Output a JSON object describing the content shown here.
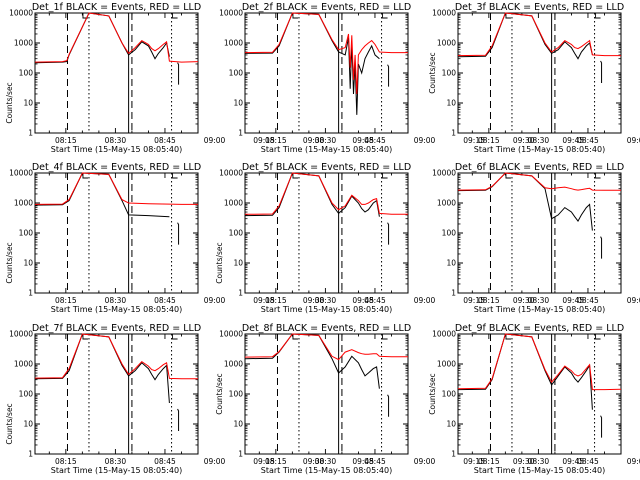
{
  "figure": {
    "time_range": [
      "08:05:40",
      "08:55:00"
    ],
    "x_tick_labels": [
      "08:15",
      "08:30",
      "08:45",
      "09:00",
      "09:15",
      "09:30",
      "09:45"
    ],
    "y_tick_labels": [
      "1",
      "10",
      "100",
      "1000",
      "10000"
    ],
    "colors": {
      "events": "#000000",
      "lld": "#ff0000"
    },
    "panels": [
      {
        "title": "Det_1f BLACK = Events, RED = LLD",
        "xlabel": "Start Time (15-May-15 08:05:40)",
        "ylabel": "Counts/sec",
        "label_row": 1
      },
      {
        "title": "Det_2f BLACK = Events, RED = LLD",
        "xlabel": "Start Time (15-May-15 08:05:40)",
        "ylabel": "",
        "label_row": 1
      },
      {
        "title": "Det_3f BLACK = Events, RED = LLD",
        "xlabel": "Start Time (15-May-15 08:05:40)",
        "ylabel": "Counts/sec",
        "label_row": 0
      },
      {
        "title": "Det_4f BLACK = Events, RED = LLD",
        "xlabel": "Start Time (15-May-15 08:05:40)",
        "ylabel": "Counts/sec",
        "label_row": 1
      },
      {
        "title": "Det_5f BLACK = Events, RED = LLD",
        "xlabel": "Start Time (15-May-15 08:05:40)",
        "ylabel": "Counts/sec",
        "label_row": 1
      },
      {
        "title": "Det_6f BLACK = Events, RED = LLD",
        "xlabel": "Start Time (15-May-15 08:05:40)",
        "ylabel": "",
        "label_row": 0
      },
      {
        "title": "Det_7f BLACK = Events, RED = LLD",
        "xlabel": "Start Time (15-May-15 08:05:40)",
        "ylabel": "Counts/sec",
        "label_row": 1
      },
      {
        "title": "Det_8f BLACK = Events, RED = LLD",
        "xlabel": "Start Time (15-May-15 08:05:40)",
        "ylabel": "Counts/sec",
        "label_row": 0
      },
      {
        "title": "Det_9f BLACK = Events, RED = LLD",
        "xlabel": "Start Time (15-May-15 08:05:40)",
        "ylabel": "Counts/sec",
        "label_row": 0
      }
    ]
  },
  "chart_data": [
    {
      "type": "line",
      "y_scale": "log",
      "ylim": [
        1,
        10000
      ],
      "vlines": {
        "dashed": [
          "08:15:30",
          "08:35:00"
        ],
        "dotted": [
          "08:22:00",
          "08:47:00"
        ],
        "solid": [
          "08:34:00"
        ]
      },
      "series": [
        {
          "name": "Events",
          "x": [
            "08:05:40",
            "08:14:00",
            "08:15:20",
            "08:16:00",
            "08:22:00",
            "08:28:00",
            "08:32:00",
            "08:34:00",
            "08:36:00",
            "08:38:00",
            "08:40:00",
            "08:41:00",
            "08:42:00",
            "08:43:00",
            "08:44:30",
            "08:45:30",
            "08:46:20"
          ],
          "y": [
            220,
            230,
            240,
            400,
            10000,
            8000,
            1000,
            400,
            600,
            1100,
            800,
            500,
            300,
            450,
            700,
            1000,
            350
          ]
        },
        {
          "name": "LLD",
          "x": [
            "08:05:40",
            "08:14:00",
            "08:15:20",
            "08:16:00",
            "08:22:00",
            "08:28:00",
            "08:32:00",
            "08:34:00",
            "08:36:00",
            "08:38:00",
            "08:40:00",
            "08:41:00",
            "08:42:00",
            "08:43:00",
            "08:44:30",
            "08:45:30",
            "08:46:20",
            "08:50:00",
            "08:55:00"
          ],
          "y": [
            230,
            240,
            260,
            420,
            10000,
            8000,
            1000,
            450,
            700,
            1200,
            900,
            650,
            550,
            650,
            900,
            1100,
            250,
            230,
            240
          ]
        }
      ]
    },
    {
      "type": "line",
      "y_scale": "log",
      "ylim": [
        1,
        10000
      ],
      "vlines": {
        "dashed": [
          "08:15:30",
          "08:35:00"
        ],
        "dotted": [
          "08:22:00",
          "08:47:00"
        ],
        "solid": [
          "08:34:00"
        ]
      },
      "series": [
        {
          "name": "Events",
          "x": [
            "08:05:40",
            "08:14:00",
            "08:16:00",
            "08:20:00",
            "08:28:00",
            "08:32:00",
            "08:34:00",
            "08:36:00",
            "08:37:00",
            "08:37:30",
            "08:38:00",
            "08:38:30",
            "08:39:00",
            "08:39:30",
            "08:40:00",
            "08:41:00",
            "08:42:00",
            "08:43:00",
            "08:44:00",
            "08:45:00",
            "08:46:20"
          ],
          "y": [
            450,
            460,
            800,
            10000,
            9000,
            1200,
            500,
            400,
            1500,
            30,
            1000,
            20,
            200,
            4,
            200,
            100,
            300,
            500,
            800,
            400,
            300
          ]
        },
        {
          "name": "LLD",
          "x": [
            "08:05:40",
            "08:14:00",
            "08:16:00",
            "08:20:00",
            "08:28:00",
            "08:32:00",
            "08:34:00",
            "08:36:00",
            "08:37:00",
            "08:37:30",
            "08:38:00",
            "08:38:30",
            "08:39:00",
            "08:39:30",
            "08:40:00",
            "08:41:00",
            "08:42:00",
            "08:43:00",
            "08:44:00",
            "08:45:00",
            "08:46:20",
            "08:50:00",
            "08:55:00"
          ],
          "y": [
            480,
            490,
            900,
            10000,
            9000,
            1300,
            600,
            700,
            2000,
            150,
            1800,
            60,
            400,
            20,
            400,
            600,
            800,
            1000,
            1200,
            900,
            500,
            480,
            480
          ]
        }
      ]
    },
    {
      "type": "line",
      "y_scale": "log",
      "ylim": [
        1,
        10000
      ],
      "vlines": {
        "dashed": [
          "08:15:30",
          "08:35:00"
        ],
        "dotted": [
          "08:22:00",
          "08:47:00"
        ],
        "solid": [
          "08:34:00"
        ]
      },
      "series": [
        {
          "name": "Events",
          "x": [
            "08:05:40",
            "08:14:00",
            "08:16:00",
            "08:20:00",
            "08:28:00",
            "08:32:00",
            "08:34:00",
            "08:36:00",
            "08:38:00",
            "08:40:00",
            "08:41:00",
            "08:42:00",
            "08:43:00",
            "08:44:30",
            "08:45:30",
            "08:46:20"
          ],
          "y": [
            350,
            360,
            700,
            10000,
            8000,
            900,
            450,
            600,
            1100,
            700,
            450,
            300,
            500,
            800,
            1000,
            400
          ]
        },
        {
          "name": "LLD",
          "x": [
            "08:05:40",
            "08:14:00",
            "08:16:00",
            "08:20:00",
            "08:28:00",
            "08:32:00",
            "08:34:00",
            "08:36:00",
            "08:38:00",
            "08:40:00",
            "08:41:00",
            "08:42:00",
            "08:43:00",
            "08:44:30",
            "08:45:30",
            "08:46:20",
            "08:50:00",
            "08:55:00"
          ],
          "y": [
            380,
            390,
            800,
            10000,
            8000,
            1000,
            500,
            700,
            1200,
            900,
            700,
            650,
            750,
            1000,
            1200,
            400,
            380,
            380
          ]
        }
      ]
    },
    {
      "type": "line",
      "y_scale": "log",
      "ylim": [
        1,
        10000
      ],
      "vlines": {
        "dashed": [
          "08:15:30",
          "08:35:00"
        ],
        "dotted": [
          "08:22:00",
          "08:47:00"
        ],
        "solid": [
          "08:34:00"
        ]
      },
      "series": [
        {
          "name": "Events",
          "x": [
            "08:05:40",
            "08:14:00",
            "08:16:00",
            "08:20:00",
            "08:28:00",
            "08:32:00",
            "08:34:00",
            "08:40:00",
            "08:46:20"
          ],
          "y": [
            850,
            870,
            1200,
            10000,
            9000,
            1200,
            400,
            380,
            350
          ]
        },
        {
          "name": "LLD",
          "x": [
            "08:05:40",
            "08:14:00",
            "08:16:00",
            "08:20:00",
            "08:28:00",
            "08:32:00",
            "08:34:00",
            "08:40:00",
            "08:46:20",
            "08:50:00",
            "08:55:00"
          ],
          "y": [
            900,
            920,
            1300,
            10000,
            9000,
            1300,
            1000,
            950,
            920,
            900,
            900
          ]
        }
      ]
    },
    {
      "type": "line",
      "y_scale": "log",
      "ylim": [
        1,
        10000
      ],
      "vlines": {
        "dashed": [
          "08:15:30",
          "08:35:00"
        ],
        "dotted": [
          "08:22:00",
          "08:47:00"
        ],
        "solid": [
          "08:34:00"
        ]
      },
      "series": [
        {
          "name": "Events",
          "x": [
            "08:05:40",
            "08:14:00",
            "08:16:00",
            "08:20:00",
            "08:28:00",
            "08:32:00",
            "08:34:00",
            "08:36:00",
            "08:38:00",
            "08:40:00",
            "08:41:00",
            "08:42:00",
            "08:43:00",
            "08:44:30",
            "08:45:30",
            "08:46:20"
          ],
          "y": [
            380,
            390,
            700,
            10000,
            8000,
            900,
            450,
            700,
            1700,
            1000,
            650,
            500,
            600,
            1000,
            1200,
            350
          ]
        },
        {
          "name": "LLD",
          "x": [
            "08:05:40",
            "08:14:00",
            "08:16:00",
            "08:20:00",
            "08:28:00",
            "08:32:00",
            "08:34:00",
            "08:36:00",
            "08:38:00",
            "08:40:00",
            "08:41:00",
            "08:42:00",
            "08:43:00",
            "08:44:30",
            "08:45:30",
            "08:46:20",
            "08:50:00",
            "08:55:00"
          ],
          "y": [
            420,
            430,
            800,
            10000,
            8000,
            1000,
            600,
            800,
            1800,
            1200,
            900,
            900,
            1000,
            1300,
            1400,
            450,
            420,
            420
          ]
        }
      ]
    },
    {
      "type": "line",
      "y_scale": "log",
      "ylim": [
        1,
        10000
      ],
      "vlines": {
        "dashed": [
          "08:15:30",
          "08:35:00"
        ],
        "dotted": [
          "08:22:00",
          "08:47:00"
        ],
        "solid": [
          "08:34:00"
        ]
      },
      "series": [
        {
          "name": "Events",
          "x": [
            "08:05:40",
            "08:14:00",
            "08:16:00",
            "08:20:00",
            "08:28:00",
            "08:32:00",
            "08:34:00",
            "08:36:00",
            "08:38:00",
            "08:40:00",
            "08:41:00",
            "08:42:00",
            "08:43:00",
            "08:44:30",
            "08:45:30",
            "08:46:20"
          ],
          "y": [
            2600,
            2650,
            3500,
            10000,
            8000,
            3000,
            300,
            400,
            700,
            500,
            350,
            250,
            400,
            700,
            900,
            120
          ]
        },
        {
          "name": "LLD",
          "x": [
            "08:05:40",
            "08:14:00",
            "08:16:00",
            "08:20:00",
            "08:28:00",
            "08:32:00",
            "08:34:00",
            "08:36:00",
            "08:38:00",
            "08:40:00",
            "08:41:00",
            "08:42:00",
            "08:43:00",
            "08:44:30",
            "08:45:30",
            "08:46:20",
            "08:50:00",
            "08:55:00"
          ],
          "y": [
            2700,
            2750,
            3600,
            10000,
            8000,
            3200,
            3000,
            3200,
            3400,
            3000,
            2800,
            2700,
            2800,
            3000,
            3100,
            2700,
            2650,
            2650
          ]
        }
      ]
    },
    {
      "type": "line",
      "y_scale": "log",
      "ylim": [
        1,
        10000
      ],
      "vlines": {
        "dashed": [
          "08:15:30",
          "08:35:00"
        ],
        "dotted": [
          "08:22:00",
          "08:47:00"
        ],
        "solid": [
          "08:34:00"
        ]
      },
      "series": [
        {
          "name": "Events",
          "x": [
            "08:05:40",
            "08:14:00",
            "08:16:00",
            "08:20:00",
            "08:28:00",
            "08:32:00",
            "08:34:00",
            "08:36:00",
            "08:38:00",
            "08:40:00",
            "08:41:00",
            "08:42:00",
            "08:43:00",
            "08:44:30",
            "08:45:30",
            "08:46:20"
          ],
          "y": [
            320,
            330,
            600,
            10000,
            8000,
            900,
            400,
            600,
            1100,
            700,
            450,
            300,
            450,
            700,
            900,
            50
          ]
        },
        {
          "name": "LLD",
          "x": [
            "08:05:40",
            "08:14:00",
            "08:16:00",
            "08:20:00",
            "08:28:00",
            "08:32:00",
            "08:34:00",
            "08:36:00",
            "08:38:00",
            "08:40:00",
            "08:41:00",
            "08:42:00",
            "08:43:00",
            "08:44:30",
            "08:45:30",
            "08:46:20",
            "08:50:00",
            "08:55:00"
          ],
          "y": [
            340,
            350,
            700,
            10000,
            8000,
            1000,
            450,
            700,
            1200,
            850,
            650,
            600,
            700,
            950,
            1100,
            330,
            320,
            320
          ]
        }
      ]
    },
    {
      "type": "line",
      "y_scale": "log",
      "ylim": [
        1,
        10000
      ],
      "vlines": {
        "dashed": [
          "08:15:30",
          "08:35:00"
        ],
        "dotted": [
          "08:22:00",
          "08:47:00"
        ],
        "solid": [
          "08:34:00"
        ]
      },
      "series": [
        {
          "name": "Events",
          "x": [
            "08:05:40",
            "08:14:00",
            "08:16:00",
            "08:20:00",
            "08:28:00",
            "08:32:00",
            "08:34:00",
            "08:36:00",
            "08:38:00",
            "08:40:00",
            "08:41:00",
            "08:42:00",
            "08:43:00",
            "08:44:30",
            "08:45:30",
            "08:46:20"
          ],
          "y": [
            1500,
            1550,
            2500,
            10000,
            9000,
            1500,
            500,
            800,
            1800,
            1100,
            650,
            400,
            500,
            700,
            800,
            150
          ]
        },
        {
          "name": "LLD",
          "x": [
            "08:05:40",
            "08:14:00",
            "08:16:00",
            "08:20:00",
            "08:28:00",
            "08:32:00",
            "08:34:00",
            "08:36:00",
            "08:38:00",
            "08:40:00",
            "08:41:00",
            "08:42:00",
            "08:43:00",
            "08:44:30",
            "08:45:30",
            "08:46:20",
            "08:50:00",
            "08:55:00"
          ],
          "y": [
            1700,
            1750,
            2600,
            10000,
            9000,
            1800,
            1400,
            2500,
            3000,
            2400,
            2200,
            2100,
            2100,
            2200,
            2200,
            1800,
            1750,
            1750
          ]
        }
      ]
    },
    {
      "type": "line",
      "y_scale": "log",
      "ylim": [
        1,
        10000
      ],
      "vlines": {
        "dashed": [
          "08:15:30",
          "08:35:00"
        ],
        "dotted": [
          "08:22:00",
          "08:47:00"
        ],
        "solid": [
          "08:34:00"
        ]
      },
      "series": [
        {
          "name": "Events",
          "x": [
            "08:05:40",
            "08:14:00",
            "08:16:00",
            "08:20:00",
            "08:28:00",
            "08:32:00",
            "08:34:00",
            "08:36:00",
            "08:38:00",
            "08:40:00",
            "08:41:00",
            "08:42:00",
            "08:43:00",
            "08:44:30",
            "08:45:30",
            "08:46:20"
          ],
          "y": [
            140,
            145,
            300,
            10000,
            8000,
            600,
            200,
            400,
            800,
            500,
            330,
            250,
            350,
            600,
            900,
            30
          ]
        },
        {
          "name": "LLD",
          "x": [
            "08:05:40",
            "08:14:00",
            "08:16:00",
            "08:20:00",
            "08:28:00",
            "08:32:00",
            "08:34:00",
            "08:36:00",
            "08:38:00",
            "08:40:00",
            "08:41:00",
            "08:42:00",
            "08:43:00",
            "08:44:30",
            "08:45:30",
            "08:46:20",
            "08:50:00",
            "08:55:00"
          ],
          "y": [
            150,
            155,
            320,
            10000,
            8000,
            650,
            250,
            450,
            850,
            600,
            450,
            400,
            450,
            700,
            950,
            140,
            140,
            145
          ]
        }
      ]
    }
  ]
}
